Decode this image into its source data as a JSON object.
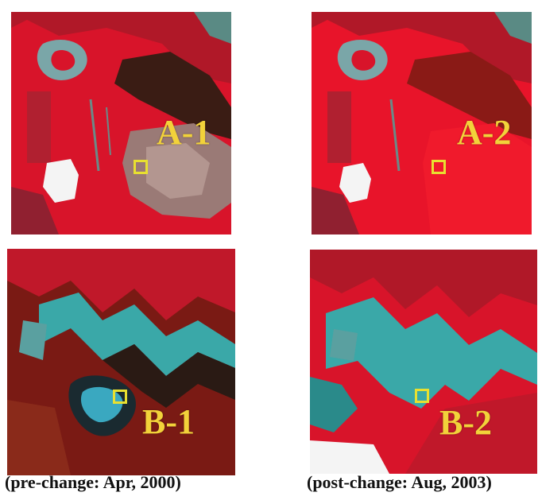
{
  "panels": [
    {
      "id": "A-1",
      "label": "A-1"
    },
    {
      "id": "A-2",
      "label": "A-2"
    },
    {
      "id": "B-1",
      "label": "B-1"
    },
    {
      "id": "B-2",
      "label": "B-2"
    }
  ],
  "captions": {
    "left": "(pre-change: Apr, 2000)",
    "right": "(post-change: Aug, 2003)"
  },
  "colors": {
    "vegetation_red": "#e0142a",
    "dark_red": "#7a1a14",
    "cyan_water": "#3aa8a8",
    "label_yellow": "#f2d23a",
    "roi_yellow": "#e8e030"
  }
}
